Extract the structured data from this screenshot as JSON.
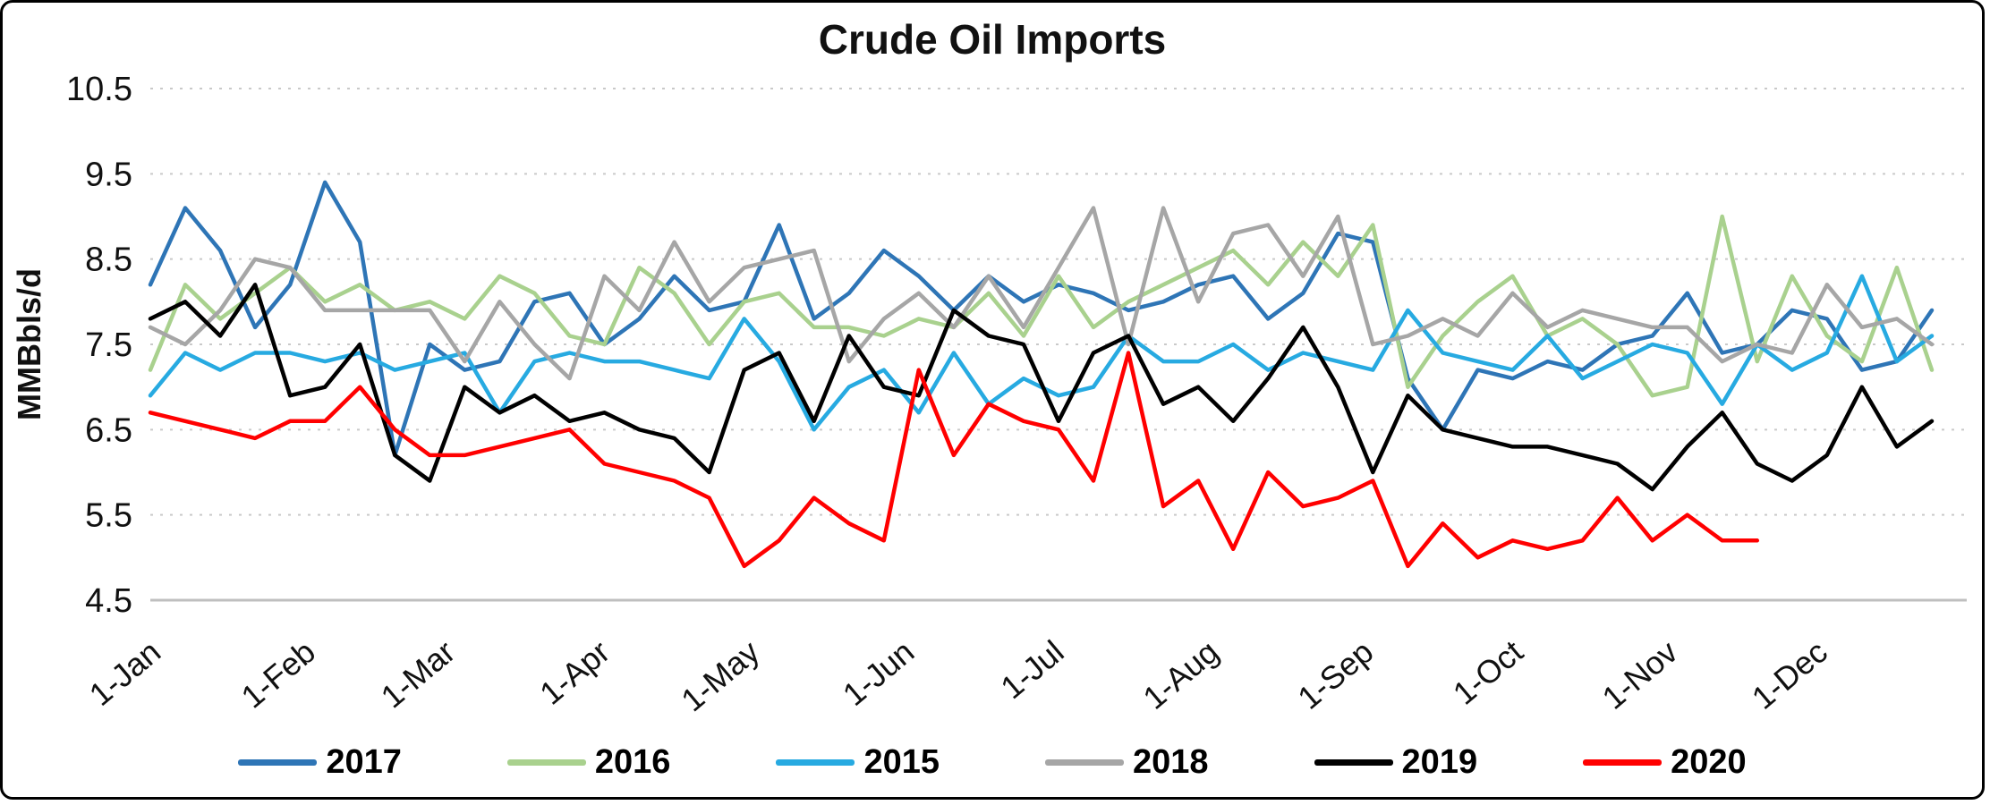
{
  "page": {
    "title": "Crude Oil Imports"
  },
  "chart_data": {
    "type": "line",
    "title": "Crude Oil Imports",
    "xlabel": "",
    "ylabel": "MMBbls/d",
    "ylim": [
      4.5,
      10.5
    ],
    "yticks": [
      "4.5",
      "5.5",
      "6.5",
      "7.5",
      "8.5",
      "9.5",
      "10.5"
    ],
    "grid": "horizontal-dotted",
    "legend_position": "bottom",
    "x_unit": "weekly-points, x tick at first of each month",
    "xtick_labels": [
      "1-Jan",
      "1-Feb",
      "1-Mar",
      "1-Apr",
      "1-May",
      "1-Jun",
      "1-Jul",
      "1-Aug",
      "1-Sep",
      "1-Oct",
      "1-Nov",
      "1-Dec"
    ],
    "xtick_day_offsets": [
      0,
      31,
      59,
      90,
      120,
      151,
      181,
      212,
      243,
      273,
      304,
      334
    ],
    "x_domain_days": [
      0,
      364
    ],
    "axis_color": "#BFBFBF",
    "gridline_color": "#C9C9C9",
    "series": [
      {
        "name": "2017",
        "color": "#2E75B6",
        "values": [
          8.2,
          9.1,
          8.6,
          7.7,
          8.2,
          9.4,
          8.7,
          6.2,
          7.5,
          7.2,
          7.3,
          8.0,
          8.1,
          7.5,
          7.8,
          8.3,
          7.9,
          8.0,
          8.9,
          7.8,
          8.1,
          8.6,
          8.3,
          7.9,
          8.3,
          8.0,
          8.2,
          8.1,
          7.9,
          8.0,
          8.2,
          8.3,
          7.8,
          8.1,
          8.8,
          8.7,
          7.1,
          6.5,
          7.2,
          7.1,
          7.3,
          7.2,
          7.5,
          7.6,
          8.1,
          7.4,
          7.5,
          7.9,
          7.8,
          7.2,
          7.3,
          7.9
        ]
      },
      {
        "name": "2016",
        "color": "#A9D18E",
        "values": [
          7.2,
          8.2,
          7.8,
          8.1,
          8.4,
          8.0,
          8.2,
          7.9,
          8.0,
          7.8,
          8.3,
          8.1,
          7.6,
          7.5,
          8.4,
          8.1,
          7.5,
          8.0,
          8.1,
          7.7,
          7.7,
          7.6,
          7.8,
          7.7,
          8.1,
          7.6,
          8.3,
          7.7,
          8.0,
          8.2,
          8.4,
          8.6,
          8.2,
          8.7,
          8.3,
          8.9,
          7.0,
          7.6,
          8.0,
          8.3,
          7.6,
          7.8,
          7.5,
          6.9,
          7.0,
          9.0,
          7.3,
          8.3,
          7.6,
          7.3,
          8.4,
          7.2
        ]
      },
      {
        "name": "2015",
        "color": "#27AAE1",
        "values": [
          6.9,
          7.4,
          7.2,
          7.4,
          7.4,
          7.3,
          7.4,
          7.2,
          7.3,
          7.4,
          6.7,
          7.3,
          7.4,
          7.3,
          7.3,
          7.2,
          7.1,
          7.8,
          7.3,
          6.5,
          7.0,
          7.2,
          6.7,
          7.4,
          6.8,
          7.1,
          6.9,
          7.0,
          7.6,
          7.3,
          7.3,
          7.5,
          7.2,
          7.4,
          7.3,
          7.2,
          7.9,
          7.4,
          7.3,
          7.2,
          7.6,
          7.1,
          7.3,
          7.5,
          7.4,
          6.8,
          7.5,
          7.2,
          7.4,
          8.3,
          7.3,
          7.6
        ]
      },
      {
        "name": "2018",
        "color": "#A6A6A6",
        "values": [
          7.7,
          7.5,
          7.9,
          8.5,
          8.4,
          7.9,
          7.9,
          7.9,
          7.9,
          7.3,
          8.0,
          7.5,
          7.1,
          8.3,
          7.9,
          8.7,
          8.0,
          8.4,
          8.5,
          8.6,
          7.3,
          7.8,
          8.1,
          7.7,
          8.3,
          7.7,
          8.4,
          9.1,
          7.5,
          9.1,
          8.0,
          8.8,
          8.9,
          8.3,
          9.0,
          7.5,
          7.6,
          7.8,
          7.6,
          8.1,
          7.7,
          7.9,
          7.8,
          7.7,
          7.7,
          7.3,
          7.5,
          7.4,
          8.2,
          7.7,
          7.8,
          7.5
        ]
      },
      {
        "name": "2019",
        "color": "#000000",
        "values": [
          7.8,
          8.0,
          7.6,
          8.2,
          6.9,
          7.0,
          7.5,
          6.2,
          5.9,
          7.0,
          6.7,
          6.9,
          6.6,
          6.7,
          6.5,
          6.4,
          6.0,
          7.2,
          7.4,
          6.6,
          7.6,
          7.0,
          6.9,
          7.9,
          7.6,
          7.5,
          6.6,
          7.4,
          7.6,
          6.8,
          7.0,
          6.6,
          7.1,
          7.7,
          7.0,
          6.0,
          6.9,
          6.5,
          6.4,
          6.3,
          6.3,
          6.2,
          6.1,
          5.8,
          6.3,
          6.7,
          6.1,
          5.9,
          6.2,
          7.0,
          6.3,
          6.6
        ]
      },
      {
        "name": "2020",
        "color": "#FF0000",
        "values": [
          6.7,
          6.6,
          6.5,
          6.4,
          6.6,
          6.6,
          7.0,
          6.5,
          6.2,
          6.2,
          6.3,
          6.4,
          6.5,
          6.1,
          6.0,
          5.9,
          5.7,
          4.9,
          5.2,
          5.7,
          5.4,
          5.2,
          7.2,
          6.2,
          6.8,
          6.6,
          6.5,
          5.9,
          7.4,
          5.6,
          5.9,
          5.1,
          6.0,
          5.6,
          5.7,
          5.9,
          4.9,
          5.4,
          5.0,
          5.2,
          5.1,
          5.2,
          5.7,
          5.2,
          5.5,
          5.2,
          5.2
        ]
      }
    ]
  }
}
